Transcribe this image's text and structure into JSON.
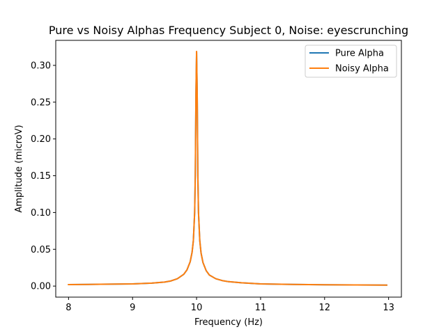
{
  "chart_data": {
    "type": "line",
    "title": "Pure vs Noisy Alphas Frequency Subject 0, Noise: eyescrunching",
    "xlabel": "Frequency (Hz)",
    "ylabel": "Amplitude (microV)",
    "xlim": [
      7.8,
      13.2
    ],
    "ylim": [
      -0.015,
      0.334
    ],
    "xticks": [
      8,
      9,
      10,
      11,
      12,
      13
    ],
    "xtick_labels": [
      "8",
      "9",
      "10",
      "11",
      "12",
      "13"
    ],
    "yticks": [
      0.0,
      0.05,
      0.1,
      0.15,
      0.2,
      0.25,
      0.3
    ],
    "ytick_labels": [
      "0.00",
      "0.05",
      "0.10",
      "0.15",
      "0.20",
      "0.25",
      "0.30"
    ],
    "grid": false,
    "legend_position": "top-right",
    "series": [
      {
        "name": "Pure Alpha",
        "color": "#1f77b4",
        "x": [
          8.0,
          8.5,
          9.0,
          9.3,
          9.5,
          9.6,
          9.7,
          9.8,
          9.85,
          9.9,
          9.93,
          9.95,
          9.97,
          9.98,
          9.99,
          10.0,
          10.01,
          10.02,
          10.03,
          10.05,
          10.07,
          10.1,
          10.15,
          10.2,
          10.3,
          10.4,
          10.5,
          10.7,
          11.0,
          11.5,
          12.0,
          12.5,
          12.97
        ],
        "y": [
          0.002,
          0.0025,
          0.003,
          0.004,
          0.0055,
          0.007,
          0.01,
          0.016,
          0.022,
          0.033,
          0.046,
          0.062,
          0.1,
          0.15,
          0.26,
          0.318,
          0.26,
          0.15,
          0.1,
          0.062,
          0.045,
          0.032,
          0.021,
          0.015,
          0.01,
          0.0075,
          0.006,
          0.0045,
          0.003,
          0.0022,
          0.0018,
          0.0015,
          0.0013
        ]
      },
      {
        "name": "Noisy Alpha",
        "color": "#ff7f0e",
        "x": [
          8.0,
          8.5,
          9.0,
          9.3,
          9.5,
          9.6,
          9.7,
          9.8,
          9.85,
          9.9,
          9.93,
          9.95,
          9.97,
          9.98,
          9.99,
          10.0,
          10.01,
          10.02,
          10.03,
          10.05,
          10.07,
          10.1,
          10.15,
          10.2,
          10.3,
          10.4,
          10.5,
          10.7,
          11.0,
          11.5,
          12.0,
          12.5,
          12.97
        ],
        "y": [
          0.002,
          0.0025,
          0.003,
          0.004,
          0.0055,
          0.007,
          0.01,
          0.016,
          0.022,
          0.033,
          0.046,
          0.062,
          0.1,
          0.15,
          0.26,
          0.319,
          0.26,
          0.15,
          0.1,
          0.062,
          0.045,
          0.032,
          0.021,
          0.015,
          0.01,
          0.0075,
          0.006,
          0.0045,
          0.003,
          0.0022,
          0.0018,
          0.0015,
          0.0013
        ]
      }
    ]
  }
}
